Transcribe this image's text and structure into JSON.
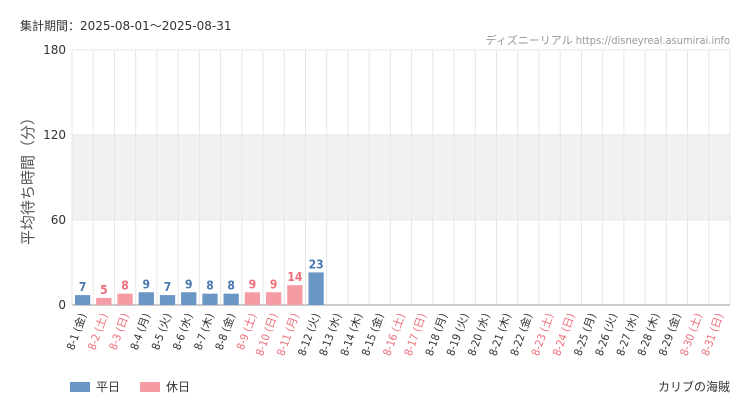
{
  "header": {
    "period": "集計期間：2025-08-01～2025-08-31",
    "credit": "ディズニーリアル https://disneyreal.asumirai.info"
  },
  "footer": {
    "attraction": "カリブの海賊"
  },
  "legend": {
    "weekday": {
      "label": "平日",
      "color": "#6a96c6"
    },
    "holiday": {
      "label": "休日",
      "color": "#f59ba3"
    }
  },
  "colors": {
    "weekday_bar": "#6a96c6",
    "holiday_bar": "#f59ba3",
    "weekday_text": "#4a78b0",
    "holiday_text": "#ee6e7a",
    "axis_text": "#333333",
    "band": "#f1f1f1",
    "grid": "#e6e6e6"
  },
  "chart_data": {
    "type": "bar",
    "ylabel": "平均待ち時間（分）",
    "ylim": [
      0,
      180
    ],
    "yticks": [
      0,
      60,
      120,
      180
    ],
    "grid": true,
    "legend_position": "bottom-left",
    "categories": [
      "8-1 (金)",
      "8-2 (土)",
      "8-3 (日)",
      "8-4 (月)",
      "8-5 (火)",
      "8-6 (水)",
      "8-7 (木)",
      "8-8 (金)",
      "8-9 (土)",
      "8-10 (日)",
      "8-11 (月)",
      "8-12 (火)",
      "8-13 (水)",
      "8-14 (木)",
      "8-15 (金)",
      "8-16 (土)",
      "8-17 (日)",
      "8-18 (月)",
      "8-19 (火)",
      "8-20 (水)",
      "8-21 (木)",
      "8-22 (金)",
      "8-23 (土)",
      "8-24 (日)",
      "8-25 (月)",
      "8-26 (火)",
      "8-27 (水)",
      "8-28 (木)",
      "8-29 (金)",
      "8-30 (土)",
      "8-31 (日)"
    ],
    "holiday": [
      false,
      true,
      true,
      false,
      false,
      false,
      false,
      false,
      true,
      true,
      true,
      false,
      false,
      false,
      false,
      true,
      true,
      false,
      false,
      false,
      false,
      false,
      true,
      true,
      false,
      false,
      false,
      false,
      false,
      true,
      true
    ],
    "values": [
      7,
      5,
      8,
      9,
      7,
      9,
      8,
      8,
      9,
      9,
      14,
      23,
      null,
      null,
      null,
      null,
      null,
      null,
      null,
      null,
      null,
      null,
      null,
      null,
      null,
      null,
      null,
      null,
      null,
      null,
      null
    ]
  }
}
